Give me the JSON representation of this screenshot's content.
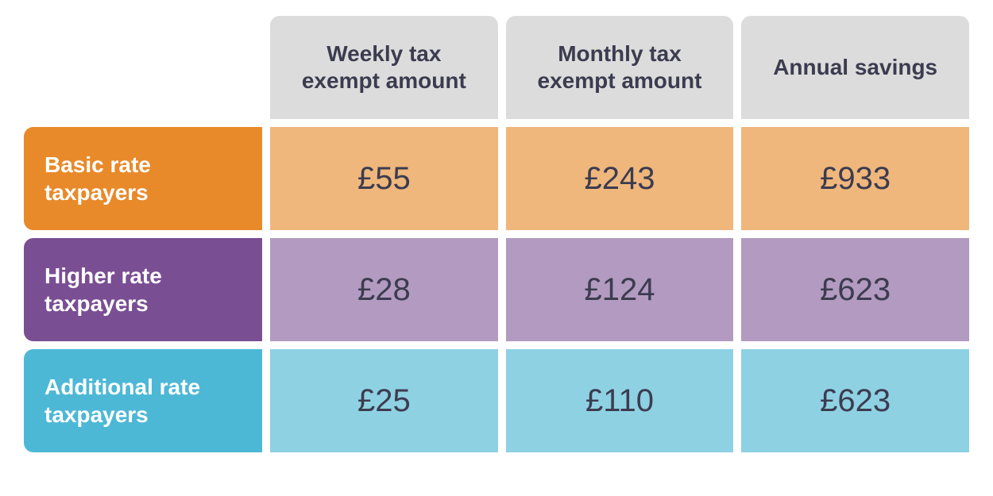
{
  "table": {
    "type": "table",
    "columns": [
      "Weekly tax exempt amount",
      "Monthly tax exempt amount",
      "Annual savings"
    ],
    "rows": [
      {
        "label": "Basic rate taxpayers",
        "header_bg": "#e88a2a",
        "cell_bg": "#efb77c",
        "values": [
          "£55",
          "£243",
          "£933"
        ]
      },
      {
        "label": "Higher rate taxpayers",
        "header_bg": "#7a4e93",
        "cell_bg": "#b29ac0",
        "values": [
          "£28",
          "£124",
          "£623"
        ]
      },
      {
        "label": "Additional rate taxpayers",
        "header_bg": "#4db8d6",
        "cell_bg": "#8ed1e3",
        "values": [
          "£25",
          "£110",
          "£623"
        ]
      }
    ],
    "styles": {
      "column_header_bg": "#dcdcdc",
      "column_header_text": "#3c3c50",
      "cell_text": "#3c3c50",
      "row_header_text": "#ffffff",
      "header_fontsize": 28,
      "cell_fontsize": 40,
      "gap": 10,
      "border_radius": 12,
      "background": "#ffffff"
    }
  }
}
